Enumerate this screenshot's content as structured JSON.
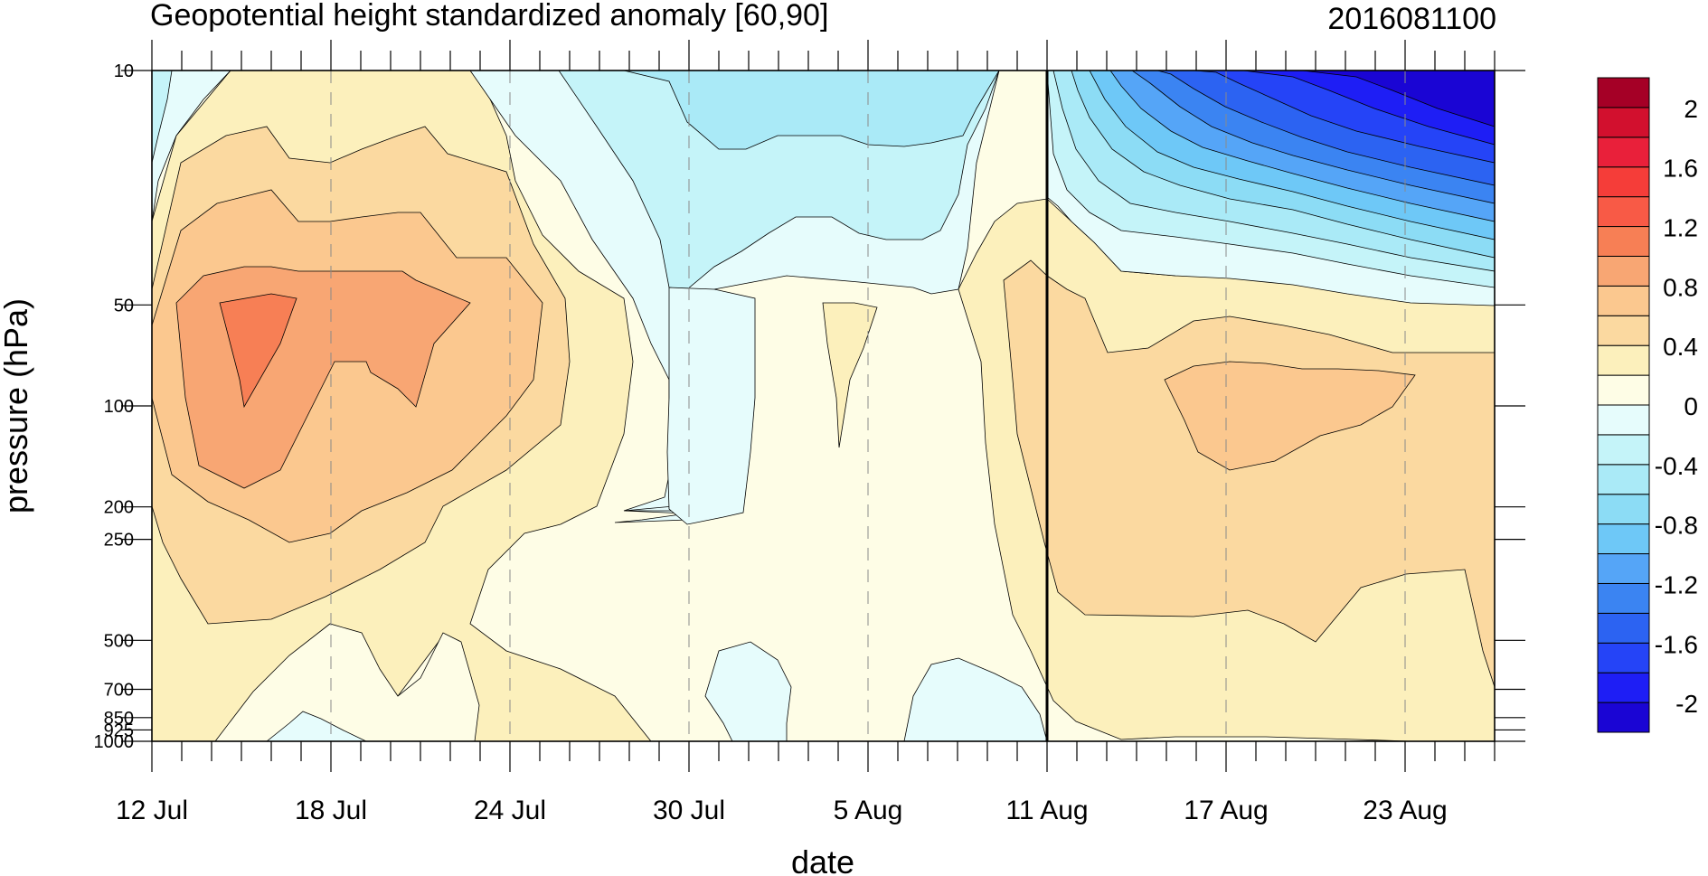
{
  "chart_data": {
    "type": "contour",
    "title": "Geopotential height standardized anomaly [60,90]",
    "subtitle_right": "2016081100",
    "xlabel": "date",
    "ylabel": "pressure (hPa)",
    "x_ticks": [
      "12 Jul",
      "18 Jul",
      "24 Jul",
      "30 Jul",
      "5 Aug",
      "11 Aug",
      "17 Aug",
      "23 Aug"
    ],
    "x_range": [
      "2016-07-12",
      "2016-08-26"
    ],
    "y_scale": "log",
    "y_reversed": true,
    "y_ticks": [
      "10",
      "50",
      "100",
      "200",
      "250",
      "500",
      "700",
      "850",
      "925",
      "1000"
    ],
    "y_tick_values": [
      10,
      50,
      100,
      200,
      250,
      500,
      700,
      850,
      925,
      1000
    ],
    "y_range": [
      10,
      1000
    ],
    "vertical_marker_date": "2016-08-11",
    "colorbar_levels": [
      -2.2,
      -2.0,
      -1.8,
      -1.6,
      -1.4,
      -1.2,
      -1.0,
      -0.8,
      -0.6,
      -0.4,
      -0.2,
      0,
      0.2,
      0.4,
      0.6,
      0.8,
      1.0,
      1.2,
      1.4,
      1.6,
      1.8,
      2.0,
      2.2
    ],
    "colorbar_labels": [
      "2",
      "1.6",
      "1.2",
      "0.8",
      "0.4",
      "0",
      "-0.4",
      "-0.8",
      "-1.2",
      "-1.6",
      "-2"
    ],
    "colorbar_colors": [
      "#1a05d4",
      "#1e1ef5",
      "#2544f7",
      "#2c63f2",
      "#3b84f2",
      "#55a5f7",
      "#6ec8f7",
      "#8cdcf5",
      "#aaeaf7",
      "#c5f4f9",
      "#e6fcfc",
      "#fefde6",
      "#fcf0bc",
      "#fbd9a0",
      "#fbc88f",
      "#f8a673",
      "#f77f55",
      "#f85a46",
      "#f53d39",
      "#e9203a",
      "#d2102e",
      "#a50026"
    ],
    "region_colors": {
      "neg_0_02": "#e6fcfc",
      "neg_02_04": "#c5f4f9",
      "neg_04_06": "#aaeaf7",
      "pos_0_02": "#fefde6",
      "pos_02_04": "#fcf0bc",
      "pos_04_06": "#fbd9a0",
      "pos_06_08": "#fbc88f",
      "pos_08_10": "#f8a673",
      "pos_10_12": "#f77f55"
    }
  }
}
